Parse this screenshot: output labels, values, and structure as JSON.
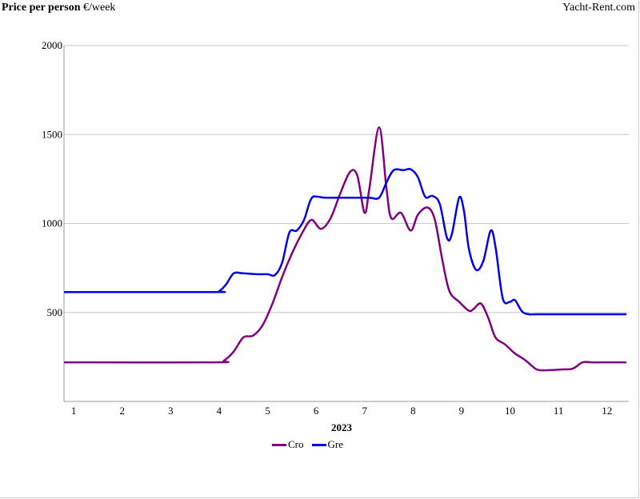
{
  "header": {
    "title_bold": "Price per person",
    "title_unit": "€/week",
    "brand": "Yacht-Rent.com"
  },
  "chart_data": {
    "type": "line",
    "title": "Price per person €/week",
    "xlabel": "2023",
    "ylabel": "",
    "xlim": [
      0.8,
      12.45
    ],
    "ylim": [
      0,
      2000
    ],
    "x_ticks": [
      1,
      2,
      3,
      4,
      5,
      6,
      7,
      8,
      9,
      10,
      11,
      12
    ],
    "y_ticks": [
      500,
      1000,
      1500,
      2000
    ],
    "grid": "horizontal",
    "legend_position": "bottom",
    "series": [
      {
        "name": "Cro",
        "color": "#800080",
        "points": [
          [
            0.8,
            220
          ],
          [
            3.9,
            220
          ],
          [
            4.1,
            230
          ],
          [
            4.3,
            280
          ],
          [
            4.5,
            360
          ],
          [
            4.7,
            370
          ],
          [
            4.9,
            430
          ],
          [
            5.1,
            550
          ],
          [
            5.3,
            700
          ],
          [
            5.5,
            830
          ],
          [
            5.7,
            940
          ],
          [
            5.9,
            1020
          ],
          [
            6.1,
            970
          ],
          [
            6.3,
            1030
          ],
          [
            6.5,
            1170
          ],
          [
            6.7,
            1290
          ],
          [
            6.85,
            1270
          ],
          [
            7.0,
            1060
          ],
          [
            7.1,
            1200
          ],
          [
            7.3,
            1540
          ],
          [
            7.45,
            1200
          ],
          [
            7.55,
            1030
          ],
          [
            7.75,
            1060
          ],
          [
            7.95,
            960
          ],
          [
            8.1,
            1050
          ],
          [
            8.3,
            1090
          ],
          [
            8.45,
            1020
          ],
          [
            8.6,
            800
          ],
          [
            8.75,
            620
          ],
          [
            8.95,
            560
          ],
          [
            9.15,
            510
          ],
          [
            9.25,
            520
          ],
          [
            9.4,
            550
          ],
          [
            9.55,
            470
          ],
          [
            9.7,
            360
          ],
          [
            9.9,
            320
          ],
          [
            10.1,
            270
          ],
          [
            10.3,
            235
          ],
          [
            10.45,
            200
          ],
          [
            10.55,
            180
          ],
          [
            10.7,
            175
          ],
          [
            11.1,
            180
          ],
          [
            11.3,
            185
          ],
          [
            11.5,
            220
          ],
          [
            11.7,
            220
          ],
          [
            12.4,
            220
          ]
        ]
      },
      {
        "name": "Gre",
        "color": "#0000ee",
        "points": [
          [
            0.8,
            615
          ],
          [
            3.85,
            615
          ],
          [
            4.0,
            620
          ],
          [
            4.15,
            660
          ],
          [
            4.3,
            720
          ],
          [
            4.5,
            720
          ],
          [
            4.8,
            715
          ],
          [
            5.0,
            715
          ],
          [
            5.15,
            710
          ],
          [
            5.3,
            780
          ],
          [
            5.45,
            950
          ],
          [
            5.6,
            960
          ],
          [
            5.75,
            1020
          ],
          [
            5.9,
            1140
          ],
          [
            6.05,
            1150
          ],
          [
            6.2,
            1145
          ],
          [
            6.8,
            1145
          ],
          [
            7.1,
            1145
          ],
          [
            7.3,
            1145
          ],
          [
            7.45,
            1230
          ],
          [
            7.6,
            1300
          ],
          [
            7.8,
            1300
          ],
          [
            7.95,
            1305
          ],
          [
            8.1,
            1260
          ],
          [
            8.25,
            1150
          ],
          [
            8.4,
            1155
          ],
          [
            8.55,
            1110
          ],
          [
            8.7,
            920
          ],
          [
            8.8,
            940
          ],
          [
            8.95,
            1145
          ],
          [
            9.05,
            1070
          ],
          [
            9.15,
            860
          ],
          [
            9.3,
            740
          ],
          [
            9.45,
            790
          ],
          [
            9.6,
            960
          ],
          [
            9.7,
            870
          ],
          [
            9.85,
            580
          ],
          [
            10.0,
            560
          ],
          [
            10.1,
            570
          ],
          [
            10.25,
            505
          ],
          [
            10.4,
            490
          ],
          [
            10.6,
            490
          ],
          [
            12.4,
            490
          ]
        ]
      }
    ]
  }
}
